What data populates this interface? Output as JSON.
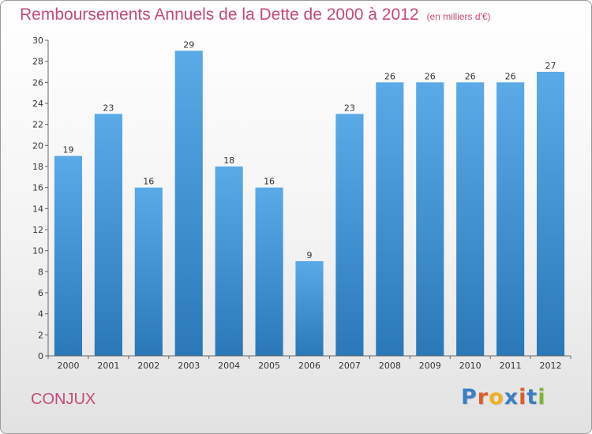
{
  "title": "Remboursements Annuels de la Dette de 2000 à 2012",
  "unit": "(en milliers d'€)",
  "commune": "CONJUX",
  "logo": "Proxiti",
  "colors": {
    "bar_top": "#5aaae8",
    "bar_bottom": "#2a78b8",
    "title": "#c44a78",
    "logo": [
      "#3a7fc4",
      "#e05a2a",
      "#f0b020",
      "#3a7fc4",
      "#e05a2a",
      "#3a7fc4",
      "#7ab830"
    ]
  },
  "chart_data": {
    "type": "bar",
    "categories": [
      "2000",
      "2001",
      "2002",
      "2003",
      "2004",
      "2005",
      "2006",
      "2007",
      "2008",
      "2009",
      "2010",
      "2011",
      "2012"
    ],
    "values": [
      19,
      23,
      16,
      29,
      18,
      16,
      9,
      23,
      26,
      26,
      26,
      26,
      27
    ],
    "ylim": [
      0,
      30
    ],
    "yticks": [
      0,
      2,
      4,
      6,
      8,
      10,
      12,
      14,
      16,
      18,
      20,
      22,
      24,
      26,
      28,
      30
    ],
    "grid": false,
    "data_labels": true
  }
}
